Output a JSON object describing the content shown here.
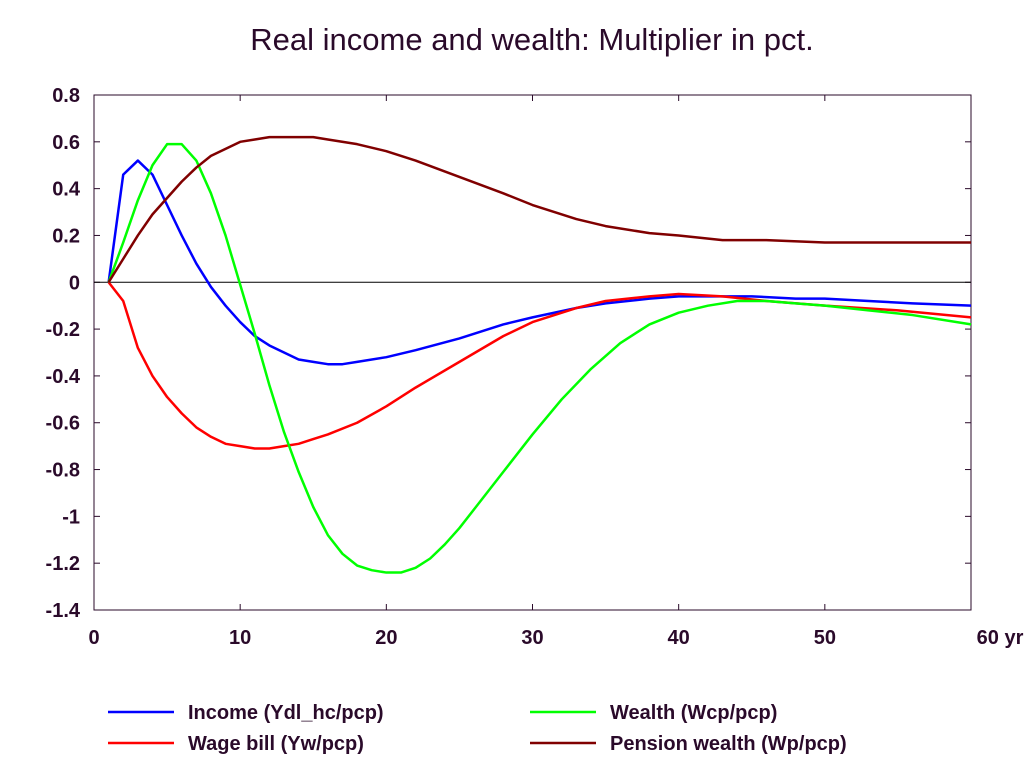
{
  "chart_data": {
    "type": "line",
    "title": "Real income and wealth: Multiplier in pct.",
    "xlabel": "",
    "ylabel": "",
    "x_unit_label": "yr",
    "xlim": [
      0,
      60
    ],
    "ylim": [
      -1.4,
      0.8
    ],
    "xticks": [
      0,
      10,
      20,
      30,
      40,
      50,
      60
    ],
    "xtick_labels": [
      "0",
      "10",
      "20",
      "30",
      "40",
      "50",
      "60 yr"
    ],
    "yticks": [
      0.8,
      0.6,
      0.4,
      0.2,
      0,
      -0.2,
      -0.4,
      -0.6,
      -0.8,
      -1,
      -1.2,
      -1.4
    ],
    "ytick_labels": [
      "0.8",
      "0.6",
      "0.4",
      "0.2",
      "0",
      "-0.2",
      "-0.4",
      "-0.6",
      "-0.8",
      "-1",
      "-1.2",
      "-1.4"
    ],
    "grid": false,
    "zero_line": true,
    "legend_position": "bottom",
    "series": [
      {
        "name": "Income (Ydl_hc/pcp)",
        "color": "#0000ff",
        "points": [
          [
            1,
            0
          ],
          [
            2,
            0.46
          ],
          [
            3,
            0.52
          ],
          [
            4,
            0.46
          ],
          [
            5,
            0.33
          ],
          [
            6,
            0.2
          ],
          [
            7,
            0.08
          ],
          [
            8,
            -0.02
          ],
          [
            9,
            -0.1
          ],
          [
            10,
            -0.17
          ],
          [
            11,
            -0.23
          ],
          [
            12,
            -0.27
          ],
          [
            13,
            -0.3
          ],
          [
            14,
            -0.33
          ],
          [
            15,
            -0.34
          ],
          [
            16,
            -0.35
          ],
          [
            17,
            -0.35
          ],
          [
            18,
            -0.34
          ],
          [
            20,
            -0.32
          ],
          [
            22,
            -0.29
          ],
          [
            25,
            -0.24
          ],
          [
            28,
            -0.18
          ],
          [
            30,
            -0.15
          ],
          [
            33,
            -0.11
          ],
          [
            35,
            -0.09
          ],
          [
            38,
            -0.07
          ],
          [
            40,
            -0.06
          ],
          [
            42,
            -0.06
          ],
          [
            45,
            -0.06
          ],
          [
            48,
            -0.07
          ],
          [
            50,
            -0.07
          ],
          [
            53,
            -0.08
          ],
          [
            56,
            -0.09
          ],
          [
            60,
            -0.1
          ]
        ]
      },
      {
        "name": "Wage bill (Yw/pcp)",
        "color": "#ff0000",
        "points": [
          [
            1,
            0
          ],
          [
            2,
            -0.08
          ],
          [
            3,
            -0.28
          ],
          [
            4,
            -0.4
          ],
          [
            5,
            -0.49
          ],
          [
            6,
            -0.56
          ],
          [
            7,
            -0.62
          ],
          [
            8,
            -0.66
          ],
          [
            9,
            -0.69
          ],
          [
            10,
            -0.7
          ],
          [
            11,
            -0.71
          ],
          [
            12,
            -0.71
          ],
          [
            13,
            -0.7
          ],
          [
            14,
            -0.69
          ],
          [
            15,
            -0.67
          ],
          [
            16,
            -0.65
          ],
          [
            18,
            -0.6
          ],
          [
            20,
            -0.53
          ],
          [
            22,
            -0.45
          ],
          [
            25,
            -0.34
          ],
          [
            28,
            -0.23
          ],
          [
            30,
            -0.17
          ],
          [
            33,
            -0.11
          ],
          [
            35,
            -0.08
          ],
          [
            38,
            -0.06
          ],
          [
            40,
            -0.05
          ],
          [
            43,
            -0.06
          ],
          [
            46,
            -0.08
          ],
          [
            50,
            -0.1
          ],
          [
            55,
            -0.12
          ],
          [
            60,
            -0.15
          ]
        ]
      },
      {
        "name": "Wealth (Wcp/pcp)",
        "color": "#00ff00",
        "points": [
          [
            1,
            0
          ],
          [
            2,
            0.17
          ],
          [
            3,
            0.35
          ],
          [
            4,
            0.5
          ],
          [
            5,
            0.59
          ],
          [
            6,
            0.59
          ],
          [
            7,
            0.52
          ],
          [
            8,
            0.38
          ],
          [
            9,
            0.2
          ],
          [
            10,
            -0.01
          ],
          [
            11,
            -0.22
          ],
          [
            12,
            -0.44
          ],
          [
            13,
            -0.64
          ],
          [
            14,
            -0.81
          ],
          [
            15,
            -0.96
          ],
          [
            16,
            -1.08
          ],
          [
            17,
            -1.16
          ],
          [
            18,
            -1.21
          ],
          [
            19,
            -1.23
          ],
          [
            20,
            -1.24
          ],
          [
            21,
            -1.24
          ],
          [
            22,
            -1.22
          ],
          [
            23,
            -1.18
          ],
          [
            24,
            -1.12
          ],
          [
            25,
            -1.05
          ],
          [
            26,
            -0.97
          ],
          [
            28,
            -0.81
          ],
          [
            30,
            -0.65
          ],
          [
            32,
            -0.5
          ],
          [
            34,
            -0.37
          ],
          [
            36,
            -0.26
          ],
          [
            38,
            -0.18
          ],
          [
            40,
            -0.13
          ],
          [
            42,
            -0.1
          ],
          [
            44,
            -0.08
          ],
          [
            46,
            -0.08
          ],
          [
            48,
            -0.09
          ],
          [
            50,
            -0.1
          ],
          [
            53,
            -0.12
          ],
          [
            56,
            -0.14
          ],
          [
            60,
            -0.18
          ]
        ]
      },
      {
        "name": "Pension wealth (Wp/pcp)",
        "color": "#800000",
        "points": [
          [
            1,
            0
          ],
          [
            2,
            0.1
          ],
          [
            3,
            0.2
          ],
          [
            4,
            0.29
          ],
          [
            5,
            0.36
          ],
          [
            6,
            0.43
          ],
          [
            7,
            0.49
          ],
          [
            8,
            0.54
          ],
          [
            9,
            0.57
          ],
          [
            10,
            0.6
          ],
          [
            11,
            0.61
          ],
          [
            12,
            0.62
          ],
          [
            13,
            0.62
          ],
          [
            14,
            0.62
          ],
          [
            15,
            0.62
          ],
          [
            16,
            0.61
          ],
          [
            18,
            0.59
          ],
          [
            20,
            0.56
          ],
          [
            22,
            0.52
          ],
          [
            25,
            0.45
          ],
          [
            28,
            0.38
          ],
          [
            30,
            0.33
          ],
          [
            33,
            0.27
          ],
          [
            35,
            0.24
          ],
          [
            38,
            0.21
          ],
          [
            40,
            0.2
          ],
          [
            43,
            0.18
          ],
          [
            46,
            0.18
          ],
          [
            50,
            0.17
          ],
          [
            53,
            0.17
          ],
          [
            56,
            0.17
          ],
          [
            60,
            0.17
          ]
        ]
      }
    ]
  }
}
